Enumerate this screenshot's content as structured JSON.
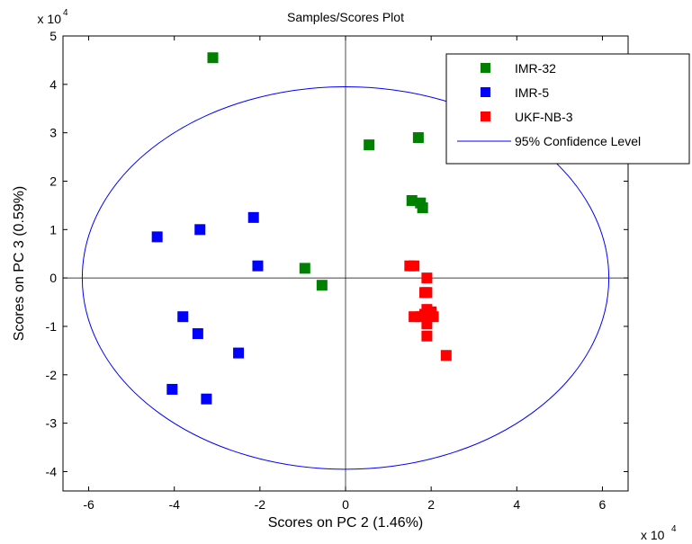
{
  "chart_data": {
    "type": "scatter",
    "title": "Samples/Scores Plot",
    "xlabel": "Scores on PC 2 (1.46%)",
    "ylabel": "Scores on PC 3 (0.59%)",
    "x_multiplier_base": "x 10",
    "x_multiplier_exp": "4",
    "y_multiplier_base": "x 10",
    "y_multiplier_exp": "4",
    "xlim": [
      -6.6,
      6.6
    ],
    "ylim": [
      -4.4,
      5
    ],
    "x_ticks": [
      -6,
      -4,
      -2,
      0,
      2,
      4,
      6
    ],
    "x_tick_labels": [
      "-6",
      "-4",
      "-2",
      "0",
      "2",
      "4",
      "6"
    ],
    "y_ticks": [
      -4,
      -3,
      -2,
      -1,
      0,
      1,
      2,
      3,
      4,
      5
    ],
    "y_tick_labels": [
      "-4",
      "-3",
      "-2",
      "-1",
      "0",
      "1",
      "2",
      "3",
      "4",
      "5"
    ],
    "grid": false,
    "legend_position": "top-right",
    "series": [
      {
        "name": "IMR-32",
        "color": "#008000",
        "points": [
          [
            -3.1,
            4.55
          ],
          [
            0.55,
            2.75
          ],
          [
            1.7,
            2.9
          ],
          [
            1.55,
            1.6
          ],
          [
            1.75,
            1.55
          ],
          [
            1.8,
            1.45
          ],
          [
            -0.95,
            0.2
          ],
          [
            -0.55,
            -0.15
          ]
        ]
      },
      {
        "name": "IMR-5",
        "color": "#0000ff",
        "points": [
          [
            -4.4,
            0.85
          ],
          [
            -3.4,
            1.0
          ],
          [
            -2.15,
            1.25
          ],
          [
            -2.05,
            0.25
          ],
          [
            -3.8,
            -0.8
          ],
          [
            -3.45,
            -1.15
          ],
          [
            -2.5,
            -1.55
          ],
          [
            -4.05,
            -2.3
          ],
          [
            -3.25,
            -2.5
          ]
        ]
      },
      {
        "name": "UKF-NB-3",
        "color": "#ff0000",
        "points": [
          [
            1.5,
            0.25
          ],
          [
            1.6,
            0.25
          ],
          [
            1.9,
            0.0
          ],
          [
            1.9,
            -0.3
          ],
          [
            1.85,
            -0.3
          ],
          [
            1.9,
            -0.65
          ],
          [
            1.85,
            -0.75
          ],
          [
            1.6,
            -0.8
          ],
          [
            1.75,
            -0.8
          ],
          [
            2.0,
            -0.7
          ],
          [
            2.05,
            -0.8
          ],
          [
            1.9,
            -0.95
          ],
          [
            1.9,
            -1.2
          ],
          [
            2.35,
            -1.6
          ]
        ]
      }
    ],
    "confidence_ellipse": {
      "name": "95% Confidence Level",
      "color": "#0000ff",
      "center": [
        0,
        0
      ],
      "semi_axis_x": 6.15,
      "semi_axis_y": 3.95
    }
  }
}
